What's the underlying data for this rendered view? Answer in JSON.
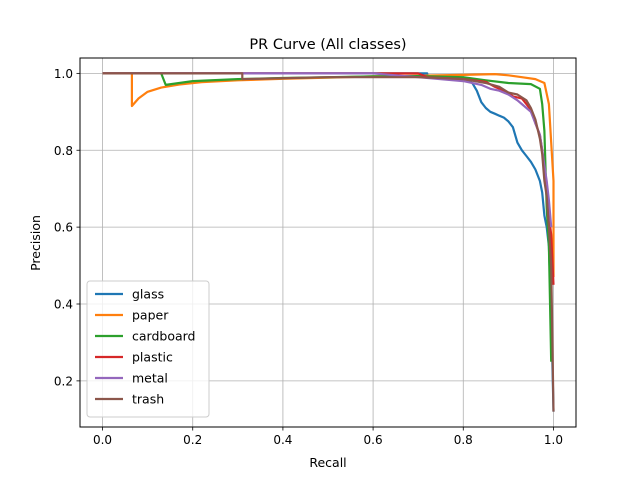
{
  "chart_data": {
    "type": "line",
    "title": "PR Curve (All classes)",
    "xlabel": "Recall",
    "ylabel": "Precision",
    "xlim": [
      -0.05,
      1.05
    ],
    "ylim": [
      0.08,
      1.04
    ],
    "xticks": [
      0.0,
      0.2,
      0.4,
      0.6,
      0.8,
      1.0
    ],
    "xtick_labels": [
      "0.0",
      "0.2",
      "0.4",
      "0.6",
      "0.8",
      "1.0"
    ],
    "yticks": [
      0.2,
      0.4,
      0.6,
      0.8,
      1.0
    ],
    "ytick_labels": [
      "0.2",
      "0.4",
      "0.6",
      "0.8",
      "1.0"
    ],
    "grid": true,
    "legend_position": "lower-left",
    "series": [
      {
        "name": "glass",
        "color": "#1f77b4",
        "points": [
          [
            0.0,
            1.0
          ],
          [
            0.72,
            1.0
          ],
          [
            0.72,
            0.995
          ],
          [
            0.76,
            0.99
          ],
          [
            0.8,
            0.985
          ],
          [
            0.82,
            0.975
          ],
          [
            0.83,
            0.955
          ],
          [
            0.84,
            0.925
          ],
          [
            0.85,
            0.91
          ],
          [
            0.86,
            0.9
          ],
          [
            0.87,
            0.895
          ],
          [
            0.88,
            0.89
          ],
          [
            0.89,
            0.885
          ],
          [
            0.9,
            0.875
          ],
          [
            0.91,
            0.86
          ],
          [
            0.92,
            0.82
          ],
          [
            0.93,
            0.8
          ],
          [
            0.94,
            0.785
          ],
          [
            0.95,
            0.77
          ],
          [
            0.96,
            0.75
          ],
          [
            0.97,
            0.72
          ],
          [
            0.975,
            0.69
          ],
          [
            0.98,
            0.63
          ],
          [
            0.985,
            0.6
          ],
          [
            0.99,
            0.55
          ],
          [
            0.995,
            0.38
          ],
          [
            1.0,
            0.12
          ]
        ]
      },
      {
        "name": "paper",
        "color": "#ff7f0e",
        "points": [
          [
            0.0,
            1.0
          ],
          [
            0.065,
            1.0
          ],
          [
            0.065,
            0.915
          ],
          [
            0.08,
            0.935
          ],
          [
            0.1,
            0.952
          ],
          [
            0.13,
            0.963
          ],
          [
            0.17,
            0.971
          ],
          [
            0.22,
            0.977
          ],
          [
            0.3,
            0.982
          ],
          [
            0.4,
            0.986
          ],
          [
            0.5,
            0.989
          ],
          [
            0.6,
            0.992
          ],
          [
            0.7,
            0.994
          ],
          [
            0.8,
            0.996
          ],
          [
            0.87,
            0.998
          ],
          [
            0.9,
            0.995
          ],
          [
            0.93,
            0.99
          ],
          [
            0.96,
            0.985
          ],
          [
            0.98,
            0.975
          ],
          [
            0.99,
            0.92
          ],
          [
            0.995,
            0.82
          ],
          [
            1.0,
            0.72
          ],
          [
            1.0,
            0.47
          ]
        ]
      },
      {
        "name": "cardboard",
        "color": "#2ca02c",
        "points": [
          [
            0.0,
            1.0
          ],
          [
            0.13,
            1.0
          ],
          [
            0.14,
            0.97
          ],
          [
            0.2,
            0.98
          ],
          [
            0.3,
            0.985
          ],
          [
            0.4,
            0.988
          ],
          [
            0.5,
            0.99
          ],
          [
            0.6,
            0.992
          ],
          [
            0.7,
            0.993
          ],
          [
            0.8,
            0.99
          ],
          [
            0.85,
            0.982
          ],
          [
            0.9,
            0.975
          ],
          [
            0.95,
            0.972
          ],
          [
            0.97,
            0.96
          ],
          [
            0.975,
            0.92
          ],
          [
            0.98,
            0.85
          ],
          [
            0.985,
            0.65
          ],
          [
            0.99,
            0.55
          ],
          [
            0.995,
            0.25
          ]
        ]
      },
      {
        "name": "plastic",
        "color": "#d62728",
        "points": [
          [
            0.0,
            1.0
          ],
          [
            0.7,
            1.0
          ],
          [
            0.72,
            0.99
          ],
          [
            0.75,
            0.988
          ],
          [
            0.8,
            0.985
          ],
          [
            0.85,
            0.978
          ],
          [
            0.87,
            0.965
          ],
          [
            0.88,
            0.96
          ],
          [
            0.9,
            0.95
          ],
          [
            0.91,
            0.94
          ],
          [
            0.93,
            0.935
          ],
          [
            0.94,
            0.92
          ],
          [
            0.95,
            0.905
          ],
          [
            0.96,
            0.87
          ],
          [
            0.97,
            0.84
          ],
          [
            0.975,
            0.8
          ],
          [
            0.98,
            0.75
          ],
          [
            0.985,
            0.7
          ],
          [
            0.99,
            0.63
          ],
          [
            0.995,
            0.58
          ],
          [
            1.0,
            0.45
          ]
        ]
      },
      {
        "name": "metal",
        "color": "#9467bd",
        "points": [
          [
            0.0,
            1.0
          ],
          [
            0.6,
            1.0
          ],
          [
            0.65,
            0.995
          ],
          [
            0.7,
            0.99
          ],
          [
            0.75,
            0.985
          ],
          [
            0.8,
            0.98
          ],
          [
            0.84,
            0.97
          ],
          [
            0.86,
            0.96
          ],
          [
            0.88,
            0.955
          ],
          [
            0.9,
            0.945
          ],
          [
            0.92,
            0.93
          ],
          [
            0.93,
            0.92
          ],
          [
            0.95,
            0.9
          ],
          [
            0.96,
            0.87
          ],
          [
            0.97,
            0.84
          ],
          [
            0.975,
            0.8
          ],
          [
            0.98,
            0.76
          ],
          [
            0.985,
            0.72
          ],
          [
            0.99,
            0.67
          ],
          [
            0.995,
            0.6
          ]
        ]
      },
      {
        "name": "trash",
        "color": "#8c564b",
        "points": [
          [
            0.0,
            1.0
          ],
          [
            0.31,
            1.0
          ],
          [
            0.31,
            0.985
          ],
          [
            0.5,
            0.99
          ],
          [
            0.7,
            0.99
          ],
          [
            0.75,
            0.988
          ],
          [
            0.8,
            0.985
          ],
          [
            0.85,
            0.975
          ],
          [
            0.88,
            0.965
          ],
          [
            0.9,
            0.95
          ],
          [
            0.92,
            0.945
          ],
          [
            0.94,
            0.93
          ],
          [
            0.95,
            0.91
          ],
          [
            0.96,
            0.88
          ],
          [
            0.97,
            0.83
          ],
          [
            0.975,
            0.79
          ],
          [
            0.98,
            0.72
          ],
          [
            0.985,
            0.68
          ],
          [
            0.99,
            0.6
          ],
          [
            0.995,
            0.5
          ],
          [
            1.0,
            0.12
          ]
        ]
      }
    ]
  }
}
